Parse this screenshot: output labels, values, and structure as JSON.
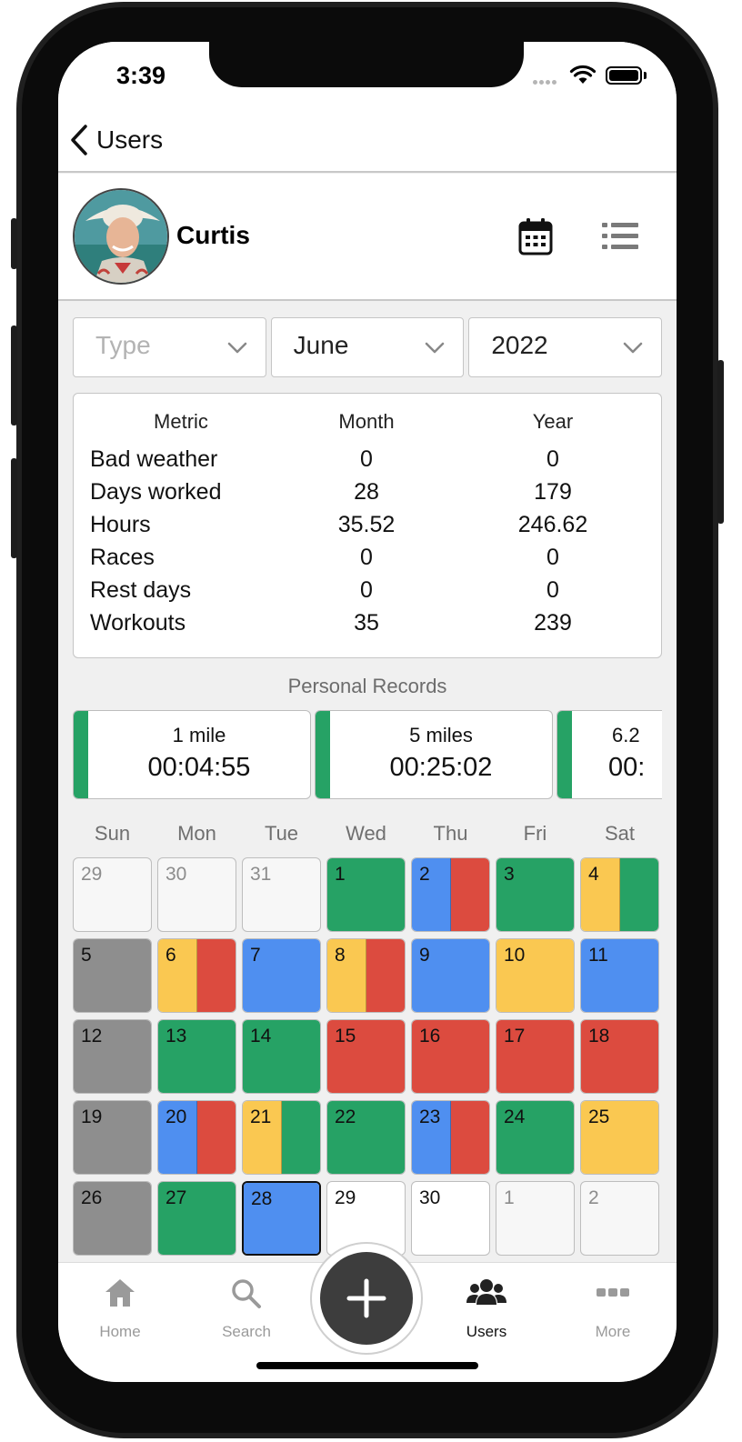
{
  "status_bar": {
    "time": "3:39"
  },
  "nav": {
    "back_label": "Users",
    "back_icon": "chevron-left-icon"
  },
  "profile": {
    "name": "Curtis",
    "calendar_icon": "calendar-icon",
    "list_icon": "list-icon"
  },
  "filters": {
    "type_placeholder": "Type",
    "month": "June",
    "year": "2022"
  },
  "metrics": {
    "headers": [
      "Metric",
      "Month",
      "Year"
    ],
    "rows": [
      {
        "metric": "Bad weather",
        "month": "0",
        "year": "0"
      },
      {
        "metric": "Days worked",
        "month": "28",
        "year": "179"
      },
      {
        "metric": "Hours",
        "month": "35.52",
        "year": "246.62"
      },
      {
        "metric": "Races",
        "month": "0",
        "year": "0"
      },
      {
        "metric": "Rest days",
        "month": "0",
        "year": "0"
      },
      {
        "metric": "Workouts",
        "month": "35",
        "year": "239"
      }
    ]
  },
  "personal_records": {
    "title": "Personal Records",
    "items": [
      {
        "distance": "1 mile",
        "time": "00:04:55"
      },
      {
        "distance": "5 miles",
        "time": "00:25:02"
      },
      {
        "distance": "6.2",
        "time": "00:"
      }
    ]
  },
  "calendar": {
    "weekdays": [
      "Sun",
      "Mon",
      "Tue",
      "Wed",
      "Thu",
      "Fri",
      "Sat"
    ],
    "colors": {
      "green": "#26a265",
      "blue": "#4f8ff0",
      "red": "#dc4b3f",
      "yellow": "#fac851",
      "gray": "#8e8e8e",
      "empty": "#ffffff",
      "out": "#f7f7f7"
    },
    "weeks": [
      [
        {
          "d": "29",
          "out": true,
          "c": []
        },
        {
          "d": "30",
          "out": true,
          "c": []
        },
        {
          "d": "31",
          "out": true,
          "c": []
        },
        {
          "d": "1",
          "c": [
            "green"
          ]
        },
        {
          "d": "2",
          "c": [
            "blue",
            "red"
          ]
        },
        {
          "d": "3",
          "c": [
            "green"
          ]
        },
        {
          "d": "4",
          "c": [
            "yellow",
            "green"
          ]
        }
      ],
      [
        {
          "d": "5",
          "c": [
            "gray"
          ]
        },
        {
          "d": "6",
          "c": [
            "yellow",
            "red"
          ]
        },
        {
          "d": "7",
          "c": [
            "blue"
          ]
        },
        {
          "d": "8",
          "c": [
            "yellow",
            "red"
          ]
        },
        {
          "d": "9",
          "c": [
            "blue"
          ]
        },
        {
          "d": "10",
          "c": [
            "yellow"
          ]
        },
        {
          "d": "11",
          "c": [
            "blue"
          ]
        }
      ],
      [
        {
          "d": "12",
          "c": [
            "gray"
          ]
        },
        {
          "d": "13",
          "c": [
            "green"
          ]
        },
        {
          "d": "14",
          "c": [
            "green"
          ]
        },
        {
          "d": "15",
          "c": [
            "red"
          ]
        },
        {
          "d": "16",
          "c": [
            "red"
          ]
        },
        {
          "d": "17",
          "c": [
            "red"
          ]
        },
        {
          "d": "18",
          "c": [
            "red"
          ]
        }
      ],
      [
        {
          "d": "19",
          "c": [
            "gray"
          ]
        },
        {
          "d": "20",
          "c": [
            "blue",
            "red"
          ]
        },
        {
          "d": "21",
          "c": [
            "yellow",
            "green"
          ]
        },
        {
          "d": "22",
          "c": [
            "green"
          ]
        },
        {
          "d": "23",
          "c": [
            "blue",
            "red"
          ]
        },
        {
          "d": "24",
          "c": [
            "green"
          ]
        },
        {
          "d": "25",
          "c": [
            "yellow"
          ]
        }
      ],
      [
        {
          "d": "26",
          "c": [
            "gray"
          ]
        },
        {
          "d": "27",
          "c": [
            "green"
          ]
        },
        {
          "d": "28",
          "c": [
            "blue"
          ],
          "today": true
        },
        {
          "d": "29",
          "c": []
        },
        {
          "d": "30",
          "c": []
        },
        {
          "d": "1",
          "out": true,
          "c": []
        },
        {
          "d": "2",
          "out": true,
          "c": []
        }
      ]
    ]
  },
  "tabbar": {
    "items": [
      {
        "label": "Home",
        "icon": "home-icon",
        "active": false
      },
      {
        "label": "Search",
        "icon": "search-icon",
        "active": false
      },
      {
        "label": "Users",
        "icon": "users-icon",
        "active": true
      },
      {
        "label": "More",
        "icon": "more-icon",
        "active": false
      }
    ],
    "fab_icon": "plus-icon"
  }
}
